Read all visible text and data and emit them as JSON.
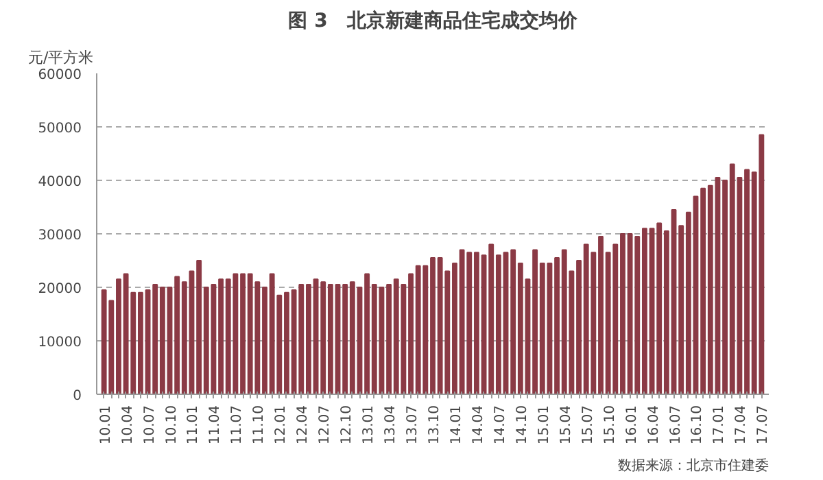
{
  "chart_data": {
    "type": "bar",
    "title": "图 3　北京新建商品住宅成交均价",
    "ylabel": "元/平方米",
    "categories": [
      "10.01",
      null,
      null,
      "10.04",
      null,
      null,
      "10.07",
      null,
      null,
      "10.10",
      null,
      null,
      "11.01",
      null,
      null,
      "11.04",
      null,
      null,
      "11.07",
      null,
      null,
      "11.10",
      null,
      null,
      "12.01",
      null,
      null,
      "12.04",
      null,
      null,
      "12.07",
      null,
      null,
      "12.10",
      null,
      null,
      "13.01",
      null,
      null,
      "13.04",
      null,
      null,
      "13.07",
      null,
      null,
      "13.10",
      null,
      null,
      "14.01",
      null,
      null,
      "14.04",
      null,
      null,
      "14.07",
      null,
      null,
      "14.10",
      null,
      null,
      "15.01",
      null,
      null,
      "15.04",
      null,
      null,
      "15.07",
      null,
      null,
      "15.10",
      null,
      null,
      "16.01",
      null,
      null,
      "16.04",
      null,
      null,
      "16.07",
      null,
      null,
      "16.10",
      null,
      null,
      "17.01",
      null,
      null,
      "17.04",
      null,
      null,
      "17.07"
    ],
    "values": [
      19500,
      17500,
      21500,
      22500,
      19000,
      19000,
      19500,
      20500,
      20000,
      20000,
      22000,
      21000,
      23000,
      25000,
      20000,
      20500,
      21500,
      21500,
      22500,
      22500,
      22500,
      21000,
      20000,
      22500,
      18500,
      19000,
      19500,
      20500,
      20500,
      21500,
      21000,
      20500,
      20500,
      20500,
      21000,
      20000,
      22500,
      20500,
      20000,
      20500,
      21500,
      20500,
      22500,
      24000,
      24000,
      25500,
      25500,
      23000,
      24500,
      27000,
      26500,
      26500,
      26000,
      28000,
      26000,
      26500,
      27000,
      24500,
      21500,
      27000,
      24500,
      24500,
      25500,
      27000,
      23000,
      25000,
      28000,
      26500,
      29500,
      26500,
      28000,
      30000,
      30000,
      29500,
      31000,
      31000,
      32000,
      30500,
      34500,
      31500,
      34000,
      37000,
      38500,
      39000,
      40500,
      40000,
      43000,
      40500,
      42000,
      41500,
      48500
    ],
    "color": "#8b3a45",
    "ylim": [
      0,
      60000
    ],
    "yticks": [
      0,
      10000,
      20000,
      30000,
      40000,
      50000,
      60000
    ],
    "grid": "y",
    "annotations": [
      "数据来源：北京市住建委"
    ]
  }
}
